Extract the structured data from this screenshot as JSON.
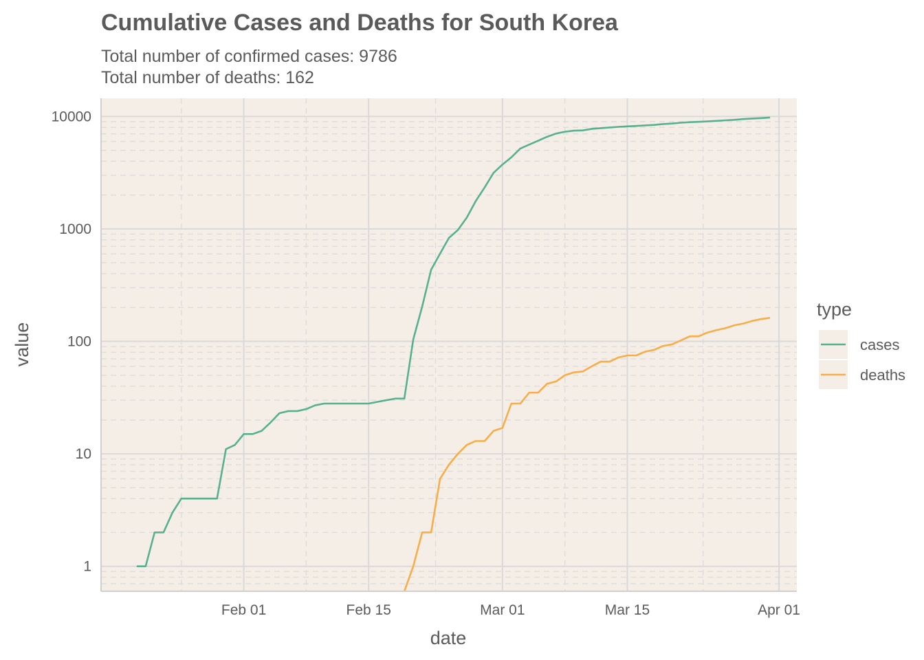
{
  "chart_data": {
    "type": "line",
    "title": "Cumulative Cases and Deaths for South Korea",
    "subtitle": [
      "Total number of confirmed cases: 9786",
      "Total number of deaths: 162"
    ],
    "xlabel": "date",
    "ylabel": "value",
    "x_ticks": [
      {
        "date": "2020-02-01",
        "label": "Feb 01"
      },
      {
        "date": "2020-02-15",
        "label": "Feb 15"
      },
      {
        "date": "2020-03-01",
        "label": "Mar 01"
      },
      {
        "date": "2020-03-15",
        "label": "Mar 15"
      },
      {
        "date": "2020-04-01",
        "label": "Apr 01"
      }
    ],
    "y_ticks": [
      {
        "value": 1,
        "label": "1"
      },
      {
        "value": 10,
        "label": "10"
      },
      {
        "value": 100,
        "label": "100"
      },
      {
        "value": 1000,
        "label": "1000"
      },
      {
        "value": 10000,
        "label": "10000"
      }
    ],
    "y_scale": "log10",
    "xlim": [
      "2020-01-16",
      "2020-04-03"
    ],
    "ylim": [
      0.6,
      14500
    ],
    "grid": true,
    "background": "#f4eee7",
    "legend": {
      "title": "type",
      "position": "right"
    },
    "series": [
      {
        "name": "cases",
        "color": "#57b08e",
        "points": [
          [
            "2020-01-20",
            1
          ],
          [
            "2020-01-21",
            1
          ],
          [
            "2020-01-22",
            2
          ],
          [
            "2020-01-23",
            2
          ],
          [
            "2020-01-24",
            3
          ],
          [
            "2020-01-25",
            4
          ],
          [
            "2020-01-26",
            4
          ],
          [
            "2020-01-27",
            4
          ],
          [
            "2020-01-28",
            4
          ],
          [
            "2020-01-29",
            4
          ],
          [
            "2020-01-30",
            11
          ],
          [
            "2020-01-31",
            12
          ],
          [
            "2020-02-01",
            15
          ],
          [
            "2020-02-02",
            15
          ],
          [
            "2020-02-03",
            16
          ],
          [
            "2020-02-04",
            19
          ],
          [
            "2020-02-05",
            23
          ],
          [
            "2020-02-06",
            24
          ],
          [
            "2020-02-07",
            24
          ],
          [
            "2020-02-08",
            25
          ],
          [
            "2020-02-09",
            27
          ],
          [
            "2020-02-10",
            28
          ],
          [
            "2020-02-11",
            28
          ],
          [
            "2020-02-12",
            28
          ],
          [
            "2020-02-13",
            28
          ],
          [
            "2020-02-14",
            28
          ],
          [
            "2020-02-15",
            28
          ],
          [
            "2020-02-16",
            29
          ],
          [
            "2020-02-17",
            30
          ],
          [
            "2020-02-18",
            31
          ],
          [
            "2020-02-19",
            31
          ],
          [
            "2020-02-20",
            104
          ],
          [
            "2020-02-21",
            204
          ],
          [
            "2020-02-22",
            433
          ],
          [
            "2020-02-23",
            602
          ],
          [
            "2020-02-24",
            833
          ],
          [
            "2020-02-25",
            977
          ],
          [
            "2020-02-26",
            1261
          ],
          [
            "2020-02-27",
            1766
          ],
          [
            "2020-02-28",
            2337
          ],
          [
            "2020-02-29",
            3150
          ],
          [
            "2020-03-01",
            3736
          ],
          [
            "2020-03-02",
            4335
          ],
          [
            "2020-03-03",
            5186
          ],
          [
            "2020-03-04",
            5621
          ],
          [
            "2020-03-05",
            6088
          ],
          [
            "2020-03-06",
            6593
          ],
          [
            "2020-03-07",
            7041
          ],
          [
            "2020-03-08",
            7314
          ],
          [
            "2020-03-09",
            7478
          ],
          [
            "2020-03-10",
            7513
          ],
          [
            "2020-03-11",
            7755
          ],
          [
            "2020-03-12",
            7869
          ],
          [
            "2020-03-13",
            7979
          ],
          [
            "2020-03-14",
            8086
          ],
          [
            "2020-03-15",
            8162
          ],
          [
            "2020-03-16",
            8236
          ],
          [
            "2020-03-17",
            8320
          ],
          [
            "2020-03-18",
            8413
          ],
          [
            "2020-03-19",
            8565
          ],
          [
            "2020-03-20",
            8652
          ],
          [
            "2020-03-21",
            8799
          ],
          [
            "2020-03-22",
            8897
          ],
          [
            "2020-03-23",
            8961
          ],
          [
            "2020-03-24",
            9037
          ],
          [
            "2020-03-25",
            9137
          ],
          [
            "2020-03-26",
            9241
          ],
          [
            "2020-03-27",
            9332
          ],
          [
            "2020-03-28",
            9478
          ],
          [
            "2020-03-29",
            9583
          ],
          [
            "2020-03-30",
            9661
          ],
          [
            "2020-03-31",
            9786
          ]
        ]
      },
      {
        "name": "deaths",
        "color": "#f8ad48",
        "points": [
          [
            "2020-02-19",
            0.6
          ],
          [
            "2020-02-20",
            1
          ],
          [
            "2020-02-21",
            2
          ],
          [
            "2020-02-22",
            2
          ],
          [
            "2020-02-23",
            6
          ],
          [
            "2020-02-24",
            8
          ],
          [
            "2020-02-25",
            10
          ],
          [
            "2020-02-26",
            12
          ],
          [
            "2020-02-27",
            13
          ],
          [
            "2020-02-28",
            13
          ],
          [
            "2020-02-29",
            16
          ],
          [
            "2020-03-01",
            17
          ],
          [
            "2020-03-02",
            28
          ],
          [
            "2020-03-03",
            28
          ],
          [
            "2020-03-04",
            35
          ],
          [
            "2020-03-05",
            35
          ],
          [
            "2020-03-06",
            42
          ],
          [
            "2020-03-07",
            44
          ],
          [
            "2020-03-08",
            50
          ],
          [
            "2020-03-09",
            53
          ],
          [
            "2020-03-10",
            54
          ],
          [
            "2020-03-11",
            60
          ],
          [
            "2020-03-12",
            66
          ],
          [
            "2020-03-13",
            66
          ],
          [
            "2020-03-14",
            72
          ],
          [
            "2020-03-15",
            75
          ],
          [
            "2020-03-16",
            75
          ],
          [
            "2020-03-17",
            81
          ],
          [
            "2020-03-18",
            84
          ],
          [
            "2020-03-19",
            91
          ],
          [
            "2020-03-20",
            94
          ],
          [
            "2020-03-21",
            102
          ],
          [
            "2020-03-22",
            111
          ],
          [
            "2020-03-23",
            111
          ],
          [
            "2020-03-24",
            120
          ],
          [
            "2020-03-25",
            126
          ],
          [
            "2020-03-26",
            131
          ],
          [
            "2020-03-27",
            139
          ],
          [
            "2020-03-28",
            144
          ],
          [
            "2020-03-29",
            152
          ],
          [
            "2020-03-30",
            158
          ],
          [
            "2020-03-31",
            162
          ]
        ]
      }
    ]
  }
}
